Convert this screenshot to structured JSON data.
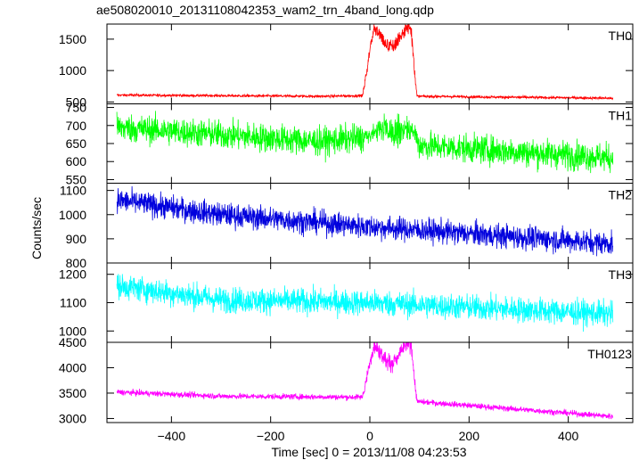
{
  "chart_data": {
    "type": "line",
    "title": "ae508020010_20131108042353_wam2_trn_4band_long.qdp",
    "ylabel": "Counts/sec",
    "xlabel": "Time [sec] 0 = 2013/11/08 04:23:53",
    "x_range": [
      -510,
      490
    ],
    "xlim": [
      -530,
      530
    ],
    "x_ticks": [
      -400,
      -200,
      0,
      200,
      400
    ],
    "x_ticklabels": [
      "−400",
      "−200",
      "0",
      "200",
      "400"
    ],
    "panels": [
      {
        "name": "TH0",
        "color": "#ff0000",
        "ylim": [
          470,
          1740
        ],
        "yticks": [
          500,
          1000,
          1500
        ],
        "ytick_labels": [
          "500",
          "1000",
          "1500"
        ],
        "baseline": [
          [
            -510,
            610
          ],
          [
            -100,
            590
          ],
          [
            -20,
            600
          ],
          [
            490,
            560
          ]
        ],
        "noise": 15,
        "burst": {
          "x_start": -15,
          "x_end": 95,
          "rise_end": 8,
          "peak": 1530,
          "peak_var": 160,
          "noise": 90
        }
      },
      {
        "name": "TH1",
        "color": "#00ff00",
        "ylim": [
          540,
          760
        ],
        "yticks": [
          550,
          600,
          650,
          700,
          750
        ],
        "ytick_labels": [
          "550",
          "600",
          "650",
          "700",
          "750"
        ],
        "baseline": [
          [
            -510,
            695
          ],
          [
            -100,
            655
          ],
          [
            90,
            680
          ],
          [
            100,
            645
          ],
          [
            490,
            610
          ]
        ],
        "noise": 28,
        "burst": {
          "x_start": -5,
          "x_end": 90,
          "rise_end": 30,
          "peak": 690,
          "peak_var": 10,
          "noise": 28
        }
      },
      {
        "name": "TH2",
        "color": "#0000dd",
        "ylim": [
          800,
          1130
        ],
        "yticks": [
          800,
          900,
          1000,
          1100
        ],
        "ytick_labels": [
          "800",
          "900",
          "1000",
          "1100"
        ],
        "baseline": [
          [
            -510,
            1060
          ],
          [
            -300,
            1000
          ],
          [
            0,
            950
          ],
          [
            490,
            880
          ]
        ],
        "noise": 35,
        "burst": null
      },
      {
        "name": "TH3",
        "color": "#00ffff",
        "ylim": [
          960,
          1240
        ],
        "yticks": [
          1000,
          1100,
          1200
        ],
        "ytick_labels": [
          "1000",
          "1100",
          "1200"
        ],
        "baseline": [
          [
            -510,
            1160
          ],
          [
            -300,
            1110
          ],
          [
            0,
            1100
          ],
          [
            490,
            1060
          ]
        ],
        "noise": 32,
        "burst": null
      },
      {
        "name": "TH0123",
        "color": "#ff00ff",
        "ylim": [
          2920,
          4500
        ],
        "yticks": [
          3000,
          3500,
          4000,
          4500
        ],
        "ytick_labels": [
          "3000",
          "3500",
          "4000",
          "4500"
        ],
        "baseline": [
          [
            -510,
            3520
          ],
          [
            -300,
            3440
          ],
          [
            -20,
            3420
          ],
          [
            490,
            3040
          ]
        ],
        "noise": 40,
        "burst": {
          "x_start": -15,
          "x_end": 95,
          "rise_end": 8,
          "peak": 4280,
          "peak_var": 200,
          "noise": 120
        }
      }
    ]
  }
}
